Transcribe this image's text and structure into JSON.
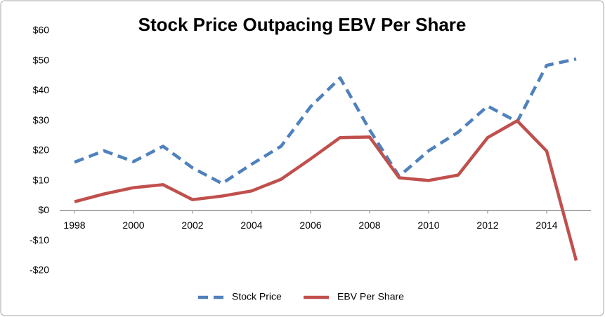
{
  "chart_data": {
    "type": "line",
    "title": "Stock Price Outpacing EBV Per Share",
    "x": [
      1998,
      1999,
      2000,
      2001,
      2002,
      2003,
      2004,
      2005,
      2006,
      2007,
      2008,
      2009,
      2010,
      2011,
      2012,
      2013,
      2014,
      2015
    ],
    "xlim": [
      1997.5,
      2015.5
    ],
    "xticks": [
      1998,
      2000,
      2002,
      2004,
      2006,
      2008,
      2010,
      2012,
      2014
    ],
    "ylim": [
      -20,
      60
    ],
    "yticks": [
      {
        "value": -20,
        "label": "-$20"
      },
      {
        "value": -10,
        "label": "-$10"
      },
      {
        "value": 0,
        "label": "$0"
      },
      {
        "value": 10,
        "label": "$10"
      },
      {
        "value": 20,
        "label": "$20"
      },
      {
        "value": 30,
        "label": "$30"
      },
      {
        "value": 40,
        "label": "$40"
      },
      {
        "value": 50,
        "label": "$50"
      },
      {
        "value": 60,
        "label": "$60"
      }
    ],
    "grid": false,
    "legend": "bottom",
    "series": [
      {
        "name": "Stock Price",
        "color": "#4f81bd",
        "style": "dashed",
        "values": [
          16.2,
          20,
          16.4,
          21.5,
          14.3,
          9.1,
          15.5,
          21.5,
          34.7,
          44.3,
          27,
          11.5,
          20,
          26.2,
          34.9,
          29.7,
          48.5,
          50.6
        ]
      },
      {
        "name": "EBV Per Share",
        "color": "#c0504d",
        "style": "solid",
        "values": [
          3,
          5.6,
          7.7,
          8.7,
          3.7,
          4.9,
          6.6,
          10.5,
          17.3,
          24.4,
          24.6,
          11,
          10.1,
          11.9,
          24.4,
          30,
          19.9,
          -16.6
        ]
      }
    ]
  }
}
